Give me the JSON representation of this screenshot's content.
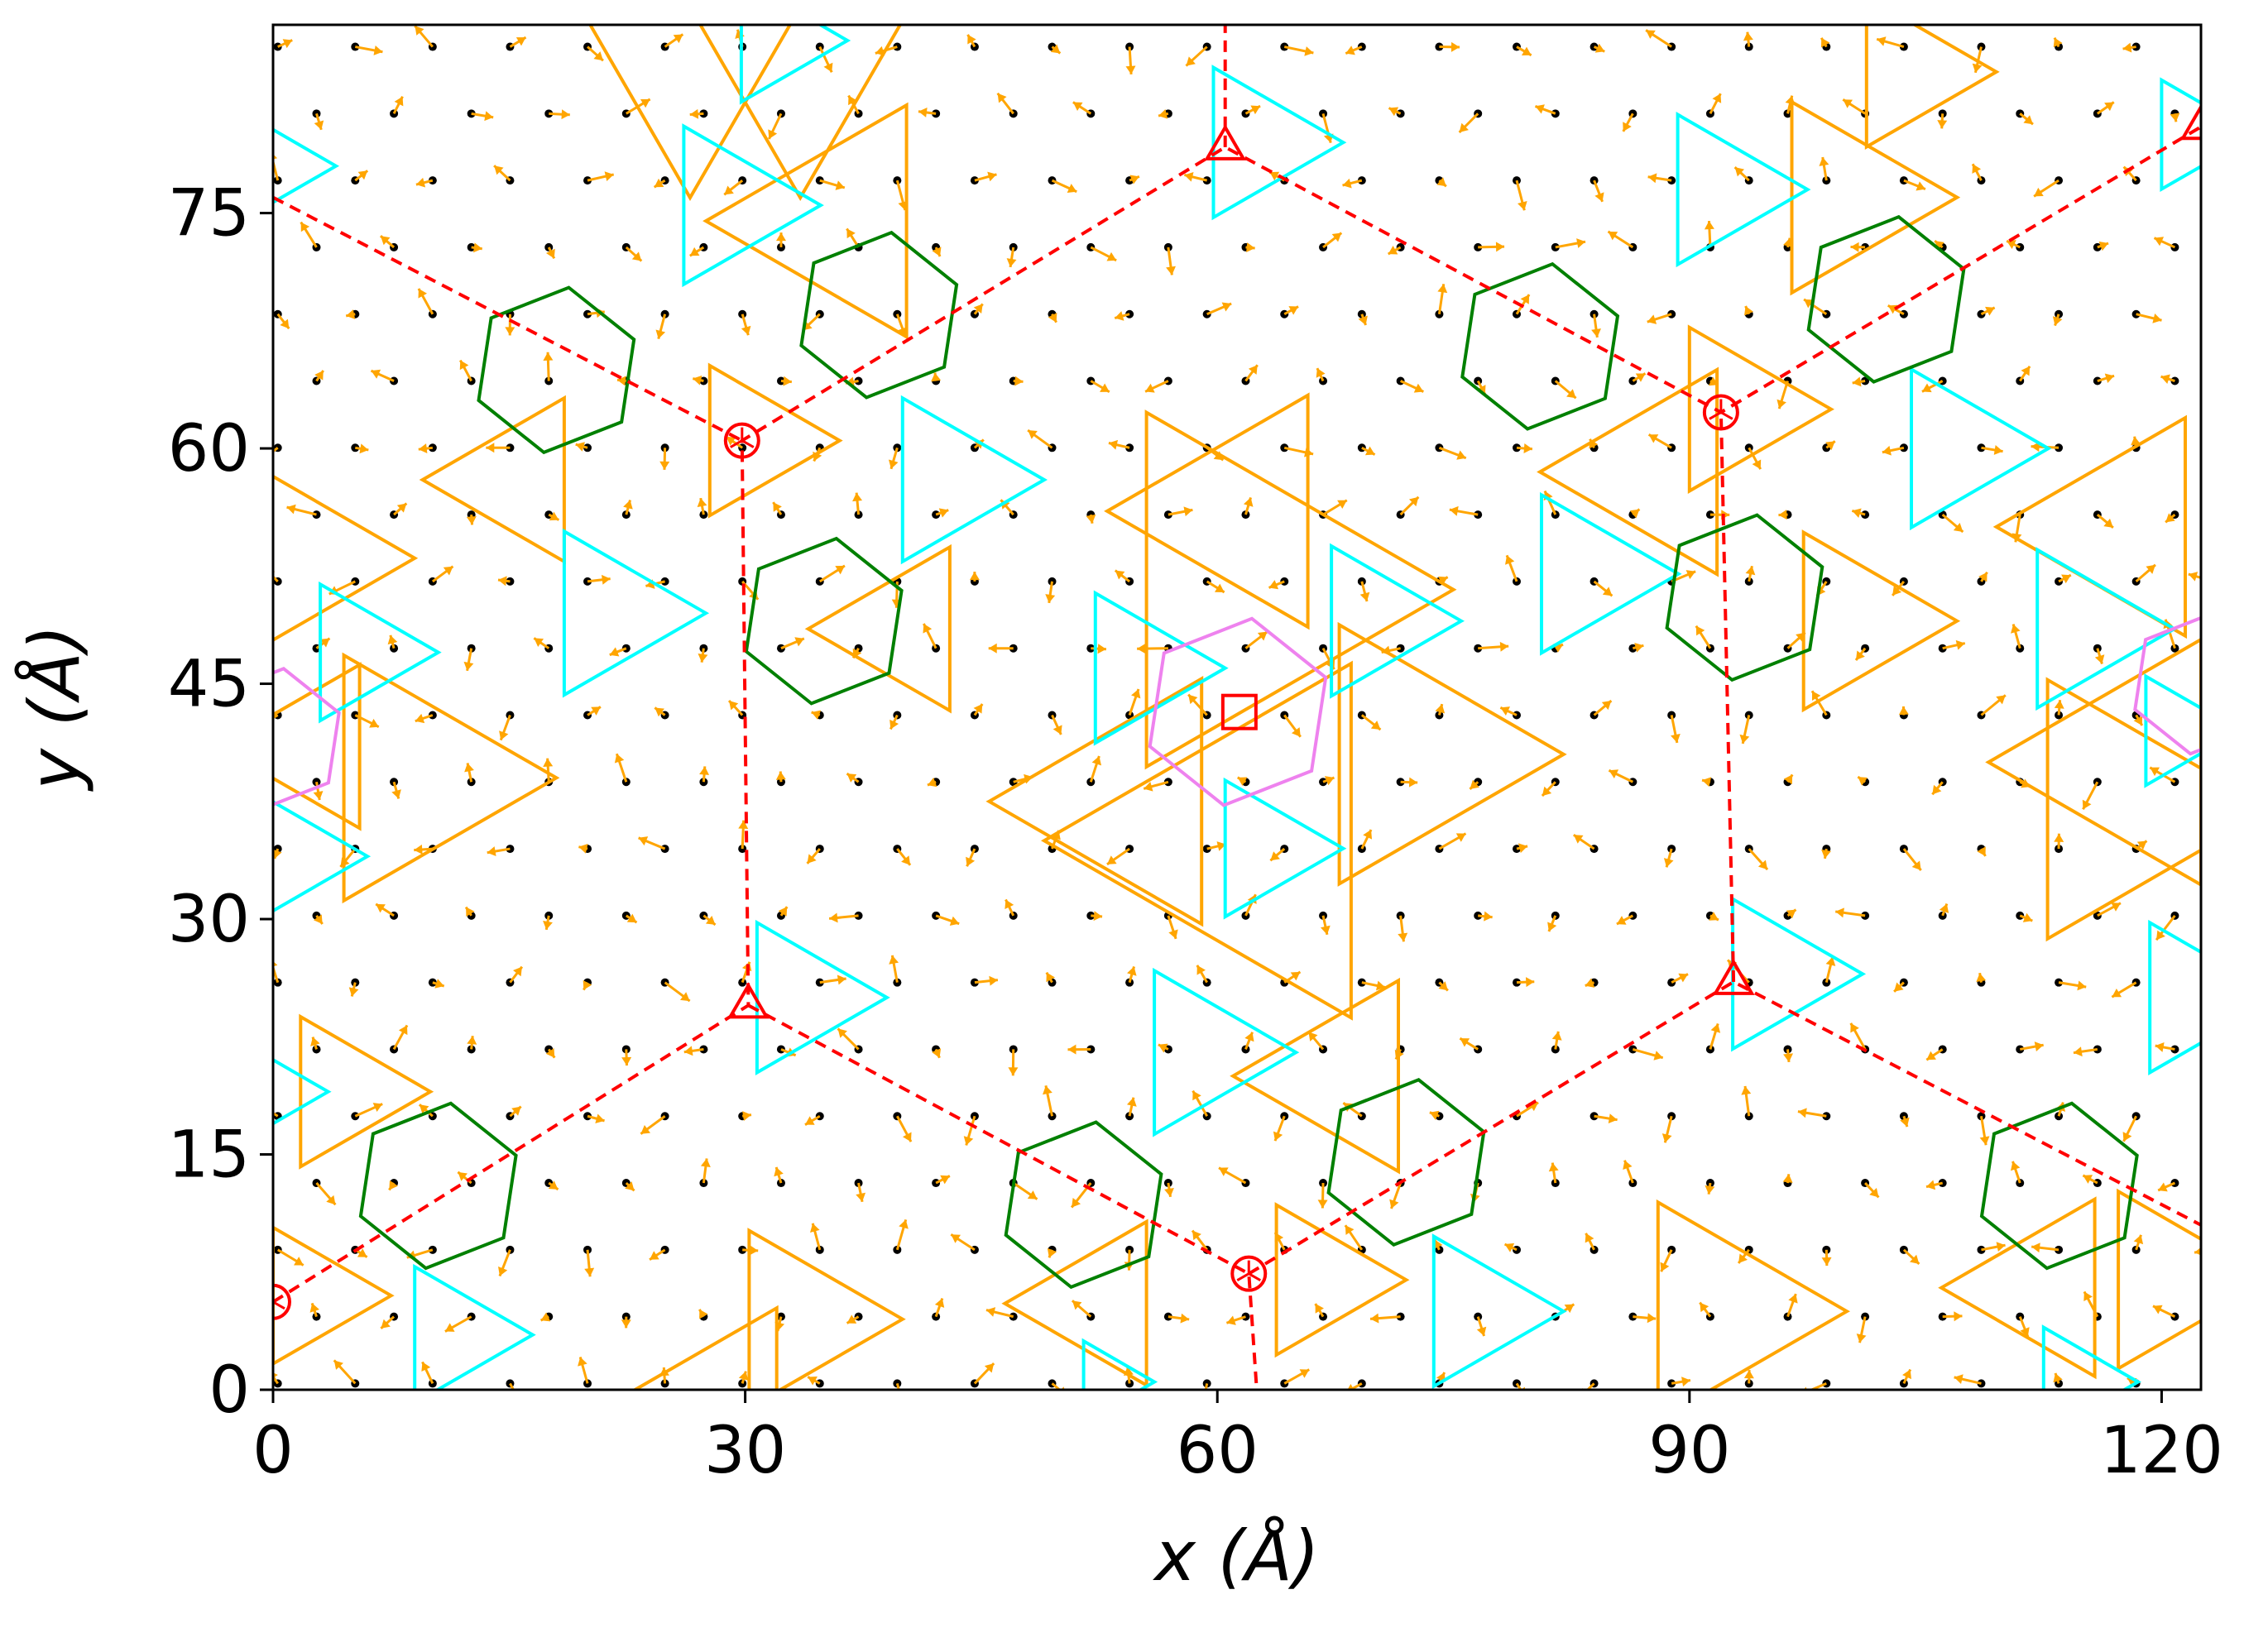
{
  "chart_data": {
    "type": "scatter",
    "title": "",
    "xlabel": "x (Å)",
    "ylabel": "y (Å)",
    "xlim": [
      0,
      122.5
    ],
    "ylim": [
      0,
      87
    ],
    "x_ticks": [
      0,
      30,
      60,
      90,
      120
    ],
    "y_ticks": [
      0,
      15,
      30,
      45,
      60,
      75
    ],
    "grid": false,
    "legend": "none",
    "colors": {
      "atoms": "#000000",
      "arrows": "#FFA500",
      "orange_triangles": "#FFA500",
      "cyan_triangles": "#00FFFF",
      "hexagons": "#008000",
      "magenta_hexagon": "#EE82EE",
      "supercell": "#FF0000"
    },
    "atom_lattice": {
      "a1": [
        2.46,
        0
      ],
      "a2": [
        1.23,
        2.13
      ],
      "origin": [
        0.3,
        0.4
      ],
      "note_free": true
    },
    "supercell_boundary": {
      "style": "dashed",
      "points": [
        [
          0,
          5.6
        ],
        [
          30.2,
          24.5
        ],
        [
          29.8,
          60.5
        ],
        [
          60.5,
          79.2
        ],
        [
          92,
          62.3
        ],
        [
          122.5,
          80.5
        ]
      ],
      "points_lower": [
        [
          0,
          76
        ],
        [
          29.8,
          60.5
        ]
      ],
      "points_b": [
        [
          30.2,
          24.5
        ],
        [
          62,
          7.4
        ],
        [
          62.5,
          0
        ]
      ],
      "points_c": [
        [
          62,
          7.4
        ],
        [
          92.8,
          26
        ],
        [
          122.5,
          10.5
        ]
      ],
      "points_d": [
        [
          92.8,
          26
        ],
        [
          92,
          62.3
        ]
      ],
      "points_e": [
        [
          60.5,
          79.2
        ],
        [
          60.5,
          87
        ]
      ]
    },
    "markers": [
      {
        "shape": "circle",
        "x": 29.8,
        "y": 60.5
      },
      {
        "shape": "circle",
        "x": 92,
        "y": 62.3
      },
      {
        "shape": "circle",
        "x": 62,
        "y": 7.4
      },
      {
        "shape": "circle",
        "x": 0,
        "y": 5.6
      },
      {
        "shape": "triangle",
        "x": 60.5,
        "y": 79.2
      },
      {
        "shape": "triangle",
        "x": 30.2,
        "y": 24.5
      },
      {
        "shape": "triangle",
        "x": 92.8,
        "y": 26
      },
      {
        "shape": "triangle",
        "x": 122.5,
        "y": 80.5
      },
      {
        "shape": "square",
        "x": 61.4,
        "y": 43.2
      }
    ],
    "orange_triangles": [
      {
        "cx": 33.5,
        "cy": 83.5,
        "r": 7.5,
        "dir": "down"
      },
      {
        "cx": 26.5,
        "cy": 83.5,
        "r": 7.5,
        "dir": "down"
      },
      {
        "cx": 36.0,
        "cy": 74.5,
        "r": 8.5,
        "dir": "left"
      },
      {
        "cx": 30.5,
        "cy": 60.5,
        "r": 5.5,
        "dir": "right"
      },
      {
        "cx": 15.5,
        "cy": 58.0,
        "r": 6.0,
        "dir": "left"
      },
      {
        "cx": 2.0,
        "cy": 53.0,
        "r": 7.0,
        "dir": "right"
      },
      {
        "cx": 9.0,
        "cy": 39.0,
        "r": 9.0,
        "dir": "right"
      },
      {
        "cx": 2.5,
        "cy": 41.0,
        "r": 6.0,
        "dir": "left"
      },
      {
        "cx": 40.0,
        "cy": 48.5,
        "r": 6.0,
        "dir": "left"
      },
      {
        "cx": 4.5,
        "cy": 19.0,
        "r": 5.5,
        "dir": "right"
      },
      {
        "cx": 2.5,
        "cy": 6.0,
        "r": 5.0,
        "dir": "right"
      },
      {
        "cx": 29.0,
        "cy": 0.0,
        "r": 6.0,
        "dir": "left"
      },
      {
        "cx": 33.5,
        "cy": 4.5,
        "r": 6.5,
        "dir": "right"
      },
      {
        "cx": 52.5,
        "cy": 5.5,
        "r": 6.0,
        "dir": "left"
      },
      {
        "cx": 66.5,
        "cy": 7.0,
        "r": 5.5,
        "dir": "right"
      },
      {
        "cx": 61.5,
        "cy": 56.0,
        "r": 8.5,
        "dir": "left"
      },
      {
        "cx": 62.0,
        "cy": 51.0,
        "r": 13.0,
        "dir": "right"
      },
      {
        "cx": 54.5,
        "cy": 37.5,
        "r": 9.0,
        "dir": "left"
      },
      {
        "cx": 62.0,
        "cy": 35.0,
        "r": 13.0,
        "dir": "left"
      },
      {
        "cx": 72.5,
        "cy": 40.5,
        "r": 9.5,
        "dir": "right"
      },
      {
        "cx": 68.0,
        "cy": 20.0,
        "r": 7.0,
        "dir": "left"
      },
      {
        "cx": 88.0,
        "cy": 58.5,
        "r": 7.5,
        "dir": "left"
      },
      {
        "cx": 93.0,
        "cy": 62.5,
        "r": 6.0,
        "dir": "right"
      },
      {
        "cx": 100.0,
        "cy": 76.0,
        "r": 7.0,
        "dir": "right"
      },
      {
        "cx": 104.0,
        "cy": 84.0,
        "r": 5.5,
        "dir": "right"
      },
      {
        "cx": 100.5,
        "cy": 49.0,
        "r": 6.5,
        "dir": "right"
      },
      {
        "cx": 117.5,
        "cy": 55.0,
        "r": 8.0,
        "dir": "left"
      },
      {
        "cx": 118.0,
        "cy": 40.0,
        "r": 9.0,
        "dir": "left"
      },
      {
        "cx": 117.5,
        "cy": 37.0,
        "r": 9.5,
        "dir": "right"
      },
      {
        "cx": 92.0,
        "cy": 5.0,
        "r": 8.0,
        "dir": "right"
      },
      {
        "cx": 112.5,
        "cy": 6.5,
        "r": 6.5,
        "dir": "left"
      },
      {
        "cx": 120.5,
        "cy": 7.0,
        "r": 6.5,
        "dir": "right"
      }
    ],
    "cyan_triangles": [
      {
        "cx": 29.0,
        "cy": 75.5,
        "r": 5.8,
        "dir": "right"
      },
      {
        "cx": 32.0,
        "cy": 86.0,
        "r": 4.5,
        "dir": "right"
      },
      {
        "cx": 62.5,
        "cy": 79.5,
        "r": 5.5,
        "dir": "right"
      },
      {
        "cx": 92.0,
        "cy": 76.5,
        "r": 5.5,
        "dir": "right"
      },
      {
        "cx": 0.5,
        "cy": 78.0,
        "r": 3.5,
        "dir": "right"
      },
      {
        "cx": 43.0,
        "cy": 58.0,
        "r": 6.0,
        "dir": "right"
      },
      {
        "cx": 21.5,
        "cy": 49.5,
        "r": 6.0,
        "dir": "right"
      },
      {
        "cx": 5.5,
        "cy": 47.0,
        "r": 5.0,
        "dir": "right"
      },
      {
        "cx": 1.5,
        "cy": 34.0,
        "r": 4.5,
        "dir": "right"
      },
      {
        "cx": 55.0,
        "cy": 46.0,
        "r": 5.5,
        "dir": "right"
      },
      {
        "cx": 70.0,
        "cy": 49.0,
        "r": 5.5,
        "dir": "right"
      },
      {
        "cx": 63.0,
        "cy": 34.5,
        "r": 5.0,
        "dir": "right"
      },
      {
        "cx": 83.5,
        "cy": 52.0,
        "r": 5.8,
        "dir": "right"
      },
      {
        "cx": 107.0,
        "cy": 60.0,
        "r": 5.8,
        "dir": "right"
      },
      {
        "cx": 115.0,
        "cy": 48.5,
        "r": 5.8,
        "dir": "right"
      },
      {
        "cx": 33.5,
        "cy": 25.0,
        "r": 5.5,
        "dir": "right"
      },
      {
        "cx": 59.0,
        "cy": 21.5,
        "r": 6.0,
        "dir": "right"
      },
      {
        "cx": 95.5,
        "cy": 26.5,
        "r": 5.5,
        "dir": "right"
      },
      {
        "cx": 122.0,
        "cy": 25.0,
        "r": 5.5,
        "dir": "right"
      },
      {
        "cx": 11.5,
        "cy": 3.5,
        "r": 5.0,
        "dir": "right"
      },
      {
        "cx": 76.5,
        "cy": 5.0,
        "r": 5.5,
        "dir": "right"
      },
      {
        "cx": 122.0,
        "cy": 80.0,
        "r": 4.0,
        "dir": "right"
      },
      {
        "cx": 121.0,
        "cy": 42.0,
        "r": 4.0,
        "dir": "right"
      },
      {
        "cx": 0.5,
        "cy": 19.0,
        "r": 3.0,
        "dir": "right"
      },
      {
        "cx": 53.0,
        "cy": 0.5,
        "r": 3.0,
        "dir": "right"
      },
      {
        "cx": 114.5,
        "cy": 0.5,
        "r": 4.0,
        "dir": "right"
      }
    ],
    "green_hexagons": [
      {
        "cx": 18.0,
        "cy": 65.0,
        "r": 5.3
      },
      {
        "cx": 38.5,
        "cy": 68.5,
        "r": 5.3
      },
      {
        "cx": 35.0,
        "cy": 49.0,
        "r": 5.3
      },
      {
        "cx": 10.5,
        "cy": 13.0,
        "r": 5.3
      },
      {
        "cx": 51.5,
        "cy": 11.8,
        "r": 5.3
      },
      {
        "cx": 72.0,
        "cy": 14.5,
        "r": 5.3
      },
      {
        "cx": 80.5,
        "cy": 66.5,
        "r": 5.3
      },
      {
        "cx": 102.5,
        "cy": 69.5,
        "r": 5.3
      },
      {
        "cx": 93.5,
        "cy": 50.5,
        "r": 5.3
      },
      {
        "cx": 113.5,
        "cy": 13.0,
        "r": 5.3
      }
    ],
    "magenta_hexagons": [
      {
        "cx": 61.3,
        "cy": 43.2,
        "r": 6.0
      },
      {
        "cx": 0.0,
        "cy": 41.5,
        "r": 4.5
      },
      {
        "cx": 122.5,
        "cy": 45.0,
        "r": 4.5
      }
    ]
  }
}
